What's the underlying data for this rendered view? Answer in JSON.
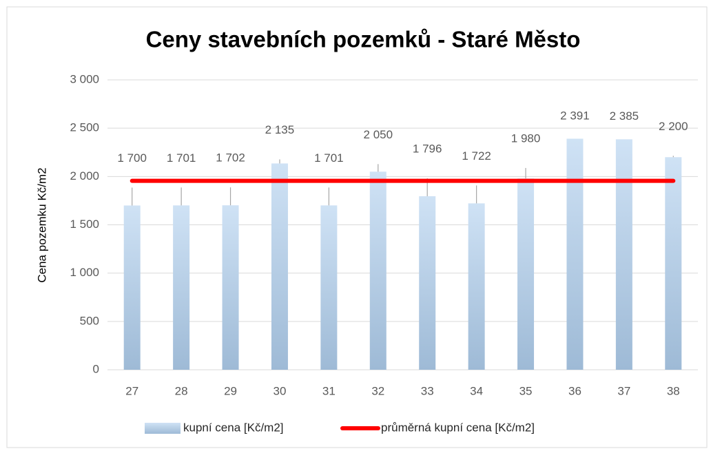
{
  "chart_data": {
    "type": "bar",
    "title": "Ceny stavebních pozemků - Staré Město",
    "y_label": "Cena pozemku Kč/m2",
    "categories": [
      "27",
      "28",
      "29",
      "30",
      "31",
      "32",
      "33",
      "34",
      "35",
      "36",
      "37",
      "38"
    ],
    "series": [
      {
        "name": "kupní cena [Kč/m2]",
        "type": "bar",
        "color": "#bdd7ee",
        "values": [
          1700,
          1701,
          1702,
          2135,
          1701,
          2050,
          1796,
          1722,
          1980,
          2391,
          2385,
          2200
        ],
        "value_labels": [
          "1 700",
          "1 701",
          "1 702",
          "2 135",
          "1 701",
          "2 050",
          "1 796",
          "1 722",
          "1 980",
          "2 391",
          "2 385",
          "2 200"
        ]
      },
      {
        "name": "průměrná kupní cena [Kč/m2]",
        "type": "line",
        "color": "#ff0000",
        "values": [
          1955,
          1955,
          1955,
          1955,
          1955,
          1955,
          1955,
          1955,
          1955,
          1955,
          1955,
          1955
        ]
      }
    ],
    "ylim": [
      0,
      3000
    ],
    "yticks": [
      0,
      500,
      {
        "value": 1000,
        "label": "1 000"
      },
      {
        "value": 1500,
        "label": "1 500"
      },
      {
        "value": 2000,
        "label": "2 000"
      },
      {
        "value": 2500,
        "label": "2 500"
      },
      {
        "value": 3000,
        "label": "3 000"
      }
    ],
    "grid": true,
    "legend": "bottom"
  }
}
